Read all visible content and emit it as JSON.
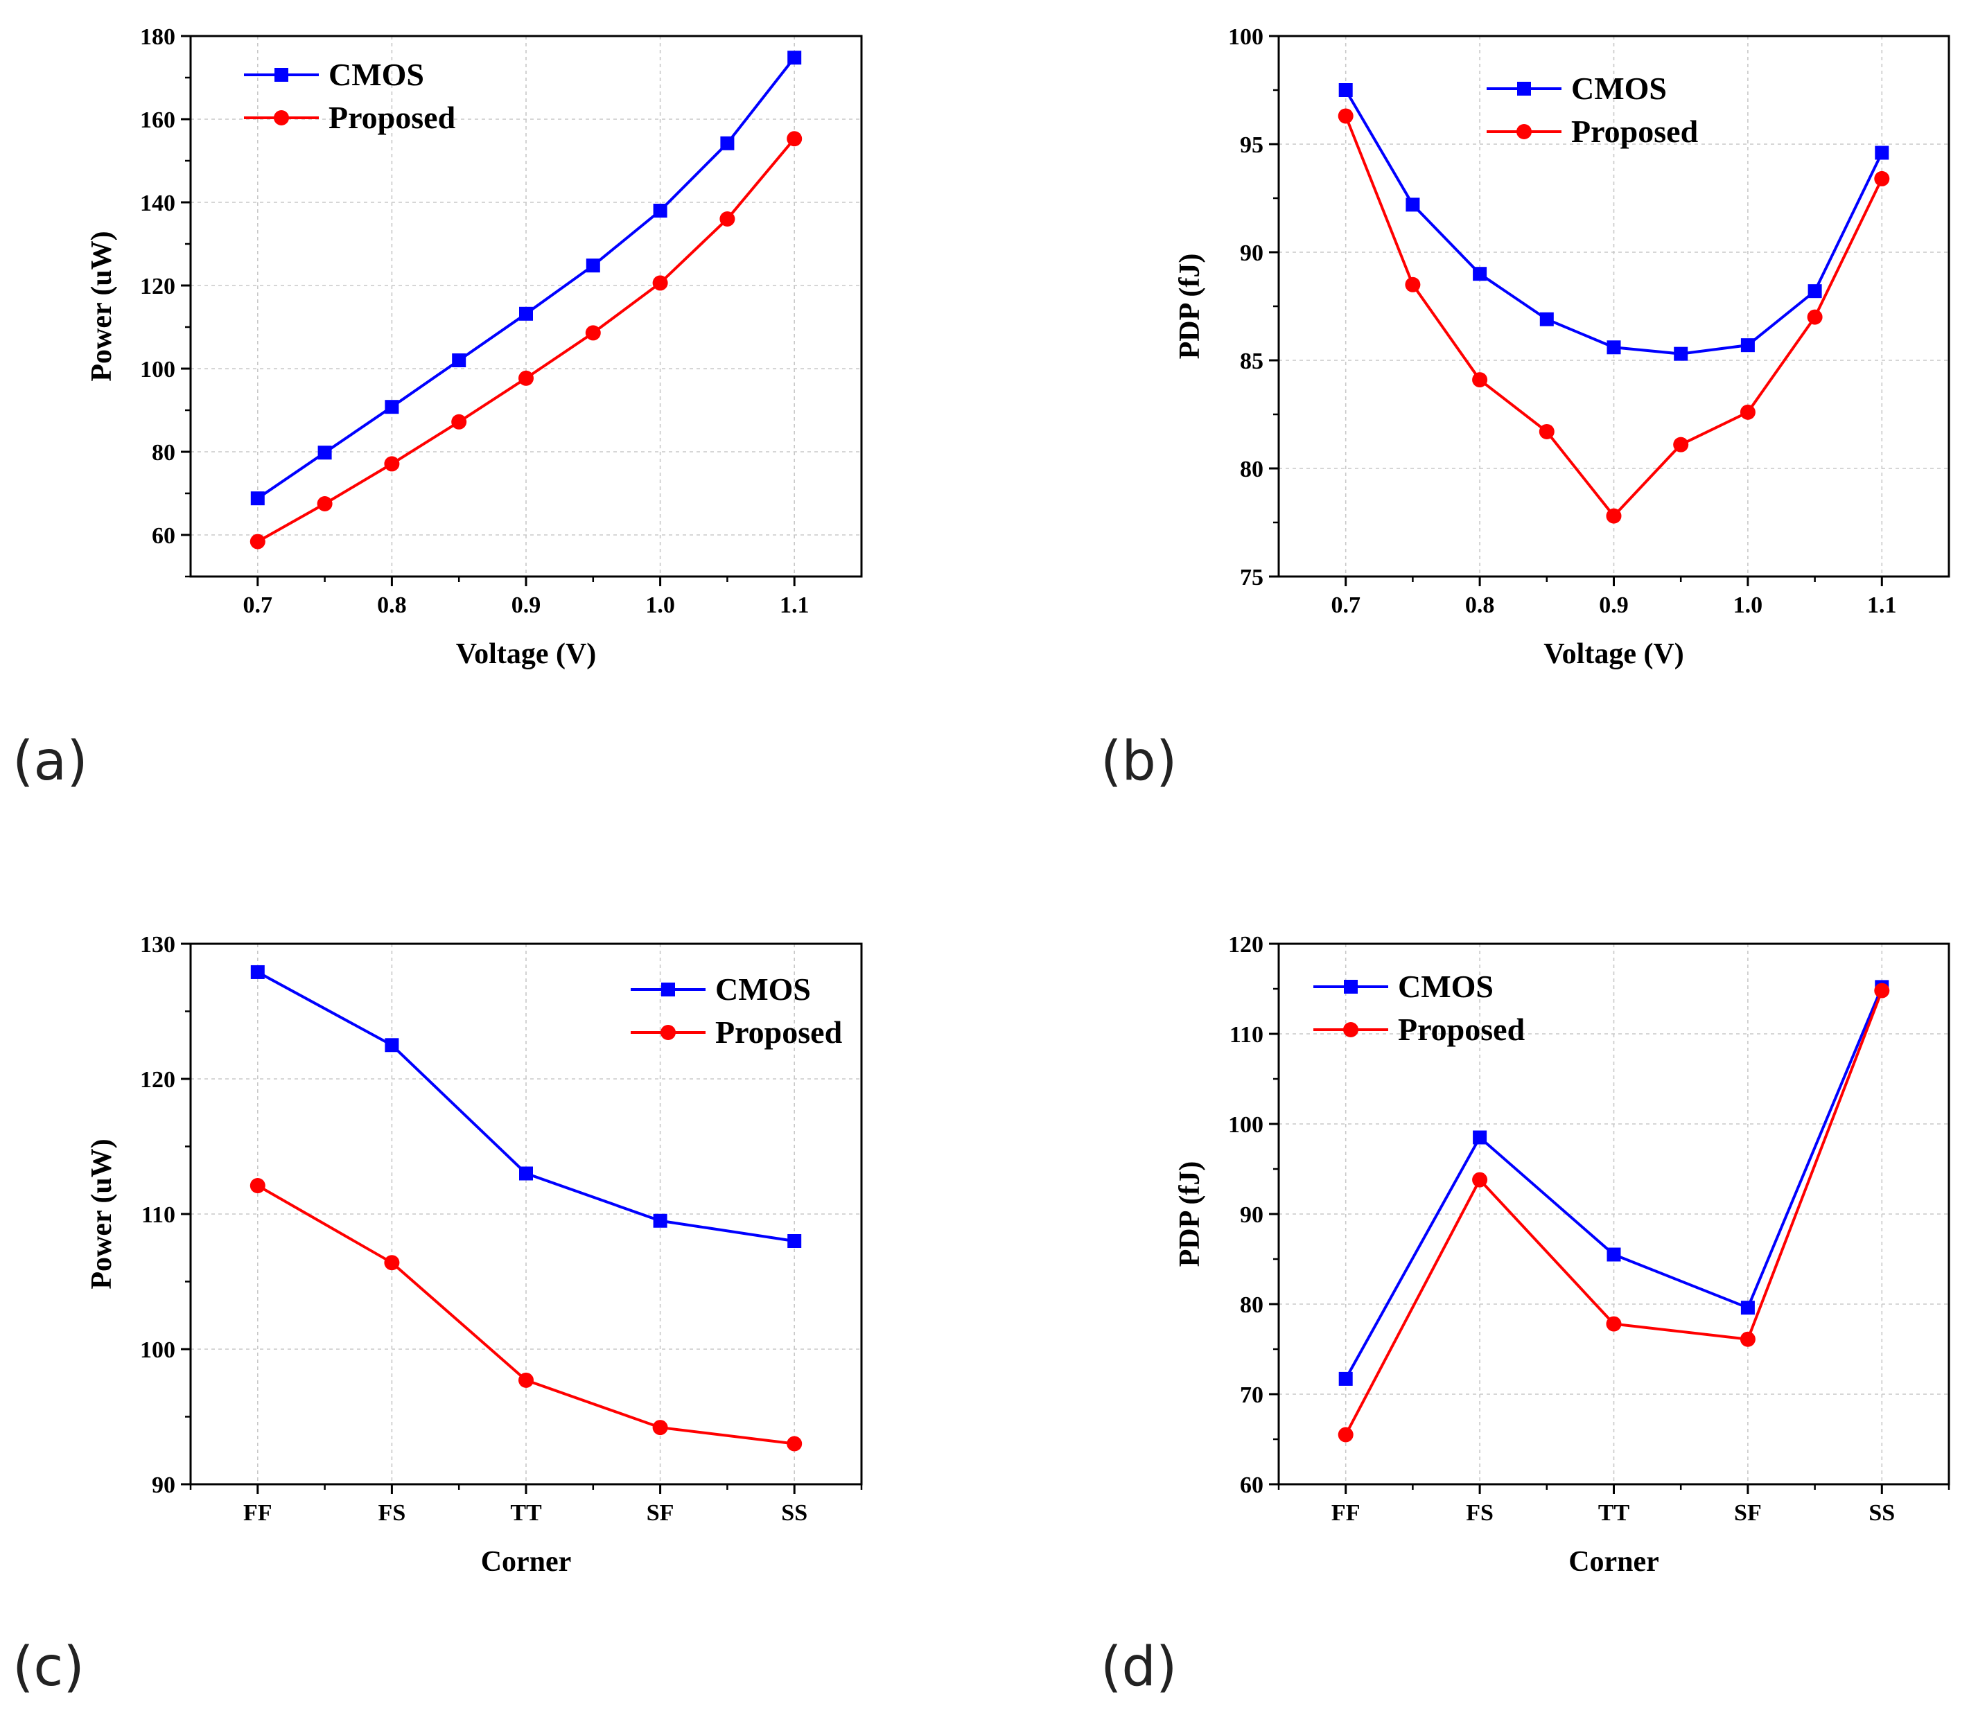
{
  "chart_data": [
    {
      "type": "line",
      "panel_label": "(a)",
      "xlabel": "Voltage (V)",
      "ylabel": "Power (uW)",
      "x": [
        0.7,
        0.75,
        0.8,
        0.85,
        0.9,
        0.95,
        1.0,
        1.05,
        1.1
      ],
      "xticks": [
        "0.7",
        "0.8",
        "0.9",
        "1.0",
        "1.1"
      ],
      "xtick_values": [
        0.7,
        0.8,
        0.9,
        1.0,
        1.1
      ],
      "xlim": [
        0.65,
        1.15
      ],
      "ylim": [
        50,
        180
      ],
      "yticks": [
        60,
        80,
        100,
        120,
        140,
        160,
        180
      ],
      "legend_position": "top-left",
      "series": [
        {
          "name": "CMOS",
          "color": "#0000ff",
          "marker": "square",
          "values": [
            68.8,
            79.8,
            90.8,
            102.0,
            113.2,
            124.8,
            138.0,
            154.2,
            174.8
          ]
        },
        {
          "name": "Proposed",
          "color": "#ff0000",
          "marker": "circle",
          "values": [
            58.4,
            67.5,
            77.1,
            87.2,
            97.7,
            108.6,
            120.6,
            136.0,
            155.3
          ]
        }
      ]
    },
    {
      "type": "line",
      "panel_label": "(b)",
      "xlabel": "Voltage (V)",
      "ylabel": "PDP (fJ)",
      "x": [
        0.7,
        0.75,
        0.8,
        0.85,
        0.9,
        0.95,
        1.0,
        1.05,
        1.1
      ],
      "xticks": [
        "0.7",
        "0.8",
        "0.9",
        "1.0",
        "1.1"
      ],
      "xtick_values": [
        0.7,
        0.8,
        0.9,
        1.0,
        1.1
      ],
      "xlim": [
        0.65,
        1.15
      ],
      "ylim": [
        75,
        100
      ],
      "yticks": [
        75,
        80,
        85,
        90,
        95,
        100
      ],
      "legend_position": "top-center",
      "series": [
        {
          "name": "CMOS",
          "color": "#0000ff",
          "marker": "square",
          "values": [
            97.5,
            92.2,
            89.0,
            86.9,
            85.6,
            85.3,
            85.7,
            88.2,
            94.6
          ]
        },
        {
          "name": "Proposed",
          "color": "#ff0000",
          "marker": "circle",
          "values": [
            96.3,
            88.5,
            84.1,
            81.7,
            77.8,
            81.1,
            82.6,
            87.0,
            93.4
          ]
        }
      ]
    },
    {
      "type": "line",
      "panel_label": "(c)",
      "xlabel": "Corner",
      "ylabel": "Power (uW)",
      "categories": [
        "FF",
        "FS",
        "TT",
        "SF",
        "SS"
      ],
      "x": [
        1,
        2,
        3,
        4,
        5
      ],
      "xticks": [
        "FF",
        "FS",
        "TT",
        "SF",
        "SS"
      ],
      "xtick_values": [
        1,
        2,
        3,
        4,
        5
      ],
      "xlim": [
        0.5,
        5.5
      ],
      "ylim": [
        90,
        130
      ],
      "yticks": [
        90,
        100,
        110,
        120,
        130
      ],
      "legend_position": "top-right",
      "series": [
        {
          "name": "CMOS",
          "color": "#0000ff",
          "marker": "square",
          "values": [
            127.9,
            122.5,
            113.0,
            109.5,
            108.0
          ]
        },
        {
          "name": "Proposed",
          "color": "#ff0000",
          "marker": "circle",
          "values": [
            112.1,
            106.4,
            97.7,
            94.2,
            93.0
          ]
        }
      ]
    },
    {
      "type": "line",
      "panel_label": "(d)",
      "xlabel": "Corner",
      "ylabel": "PDP (fJ)",
      "categories": [
        "FF",
        "FS",
        "TT",
        "SF",
        "SS"
      ],
      "x": [
        1,
        2,
        3,
        4,
        5
      ],
      "xticks": [
        "FF",
        "FS",
        "TT",
        "SF",
        "SS"
      ],
      "xtick_values": [
        1,
        2,
        3,
        4,
        5
      ],
      "xlim": [
        0.5,
        5.5
      ],
      "ylim": [
        60,
        120
      ],
      "yticks": [
        60,
        70,
        80,
        90,
        100,
        110,
        120
      ],
      "legend_position": "top-left",
      "series": [
        {
          "name": "CMOS",
          "color": "#0000ff",
          "marker": "square",
          "values": [
            71.7,
            98.5,
            85.5,
            79.6,
            115.2
          ]
        },
        {
          "name": "Proposed",
          "color": "#ff0000",
          "marker": "circle",
          "values": [
            65.5,
            93.8,
            77.8,
            76.1,
            114.8
          ]
        }
      ]
    }
  ]
}
